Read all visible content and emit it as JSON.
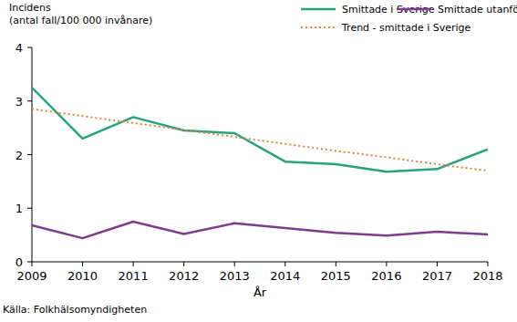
{
  "chart_data": {
    "type": "line",
    "ylabel": [
      "Incidens",
      "(antal fall/100 000 invånare)"
    ],
    "xlabel": "År",
    "source": "Källa: Folkhälsomyndigheten",
    "x": [
      2009,
      2010,
      2011,
      2012,
      2013,
      2014,
      2015,
      2016,
      2017,
      2018
    ],
    "xlim": [
      2009,
      2018
    ],
    "xticks": [
      2009,
      2010,
      2011,
      2012,
      2013,
      2014,
      2015,
      2016,
      2017,
      2018
    ],
    "ylim": [
      0,
      4
    ],
    "yticks": [
      0,
      1,
      2,
      3,
      4
    ],
    "grid": false,
    "legend": "top-right",
    "series": [
      {
        "name": "Smittade i Sverige",
        "color": "#26a37c",
        "line_style": "solid",
        "values": [
          3.25,
          2.3,
          2.7,
          2.45,
          2.4,
          1.87,
          1.82,
          1.68,
          1.73,
          2.1
        ]
      },
      {
        "name": "Smittade utanför Sverige",
        "color": "#7d3c8f",
        "line_style": "solid",
        "values": [
          0.68,
          0.44,
          0.75,
          0.52,
          0.72,
          0.63,
          0.54,
          0.49,
          0.56,
          0.51
        ]
      },
      {
        "name": "Trend - smittade i Sverige",
        "color": "#e8813f",
        "line_style": "dotted",
        "values": [
          2.85,
          2.72,
          2.59,
          2.46,
          2.33,
          2.2,
          2.07,
          1.95,
          1.82,
          1.7
        ]
      }
    ]
  }
}
